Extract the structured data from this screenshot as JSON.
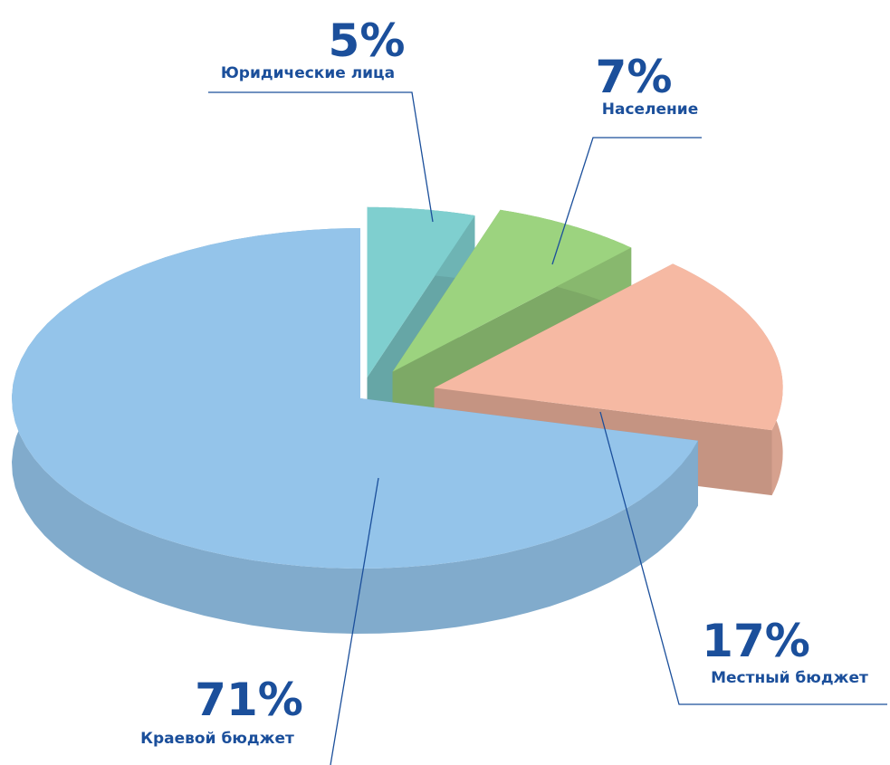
{
  "chart_data": {
    "type": "pie",
    "categories": [
      "Юридические лица",
      "Население",
      "Местный бюджет",
      "Краевой бюджет"
    ],
    "values": [
      5,
      7,
      17,
      71
    ],
    "value_labels": [
      "5%",
      "7%",
      "17%",
      "71%"
    ],
    "colors": [
      "#7fcfcf",
      "#9cd37f",
      "#f6b9a3",
      "#94c4ea"
    ]
  }
}
